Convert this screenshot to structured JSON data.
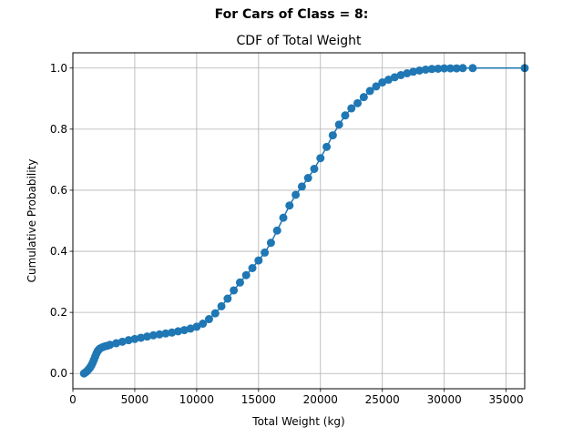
{
  "figure": {
    "suptitle": "For Cars of Class = 8:"
  },
  "chart_data": {
    "type": "line",
    "title": "CDF of Total Weight",
    "xlabel": "Total Weight (kg)",
    "ylabel": "Cumulative Probability",
    "xlim": [
      0,
      36500
    ],
    "ylim": [
      -0.05,
      1.05
    ],
    "xticks": [
      0,
      5000,
      10000,
      15000,
      20000,
      25000,
      30000,
      35000
    ],
    "yticks": [
      0.0,
      0.2,
      0.4,
      0.6,
      0.8,
      1.0
    ],
    "grid": true,
    "marker": "circle",
    "color": "#1f77b4",
    "series": [
      {
        "x": [
          900,
          1000,
          1100,
          1200,
          1300,
          1400,
          1500,
          1600,
          1700,
          1800,
          1900,
          2000,
          2100,
          2200,
          2400,
          2600,
          2800,
          3000,
          3500,
          4000,
          4500,
          5000,
          5500,
          6000,
          6500,
          7000,
          7500,
          8000,
          8500,
          9000,
          9500,
          10000,
          10500,
          11000,
          11500,
          12000,
          12500,
          13000,
          13500,
          14000,
          14500,
          15000,
          15500,
          16000,
          16500,
          17000,
          17500,
          18000,
          18500,
          19000,
          19500,
          20000,
          20500,
          21000,
          21500,
          22000,
          22500,
          23000,
          23500,
          24000,
          24500,
          25000,
          25500,
          26000,
          26500,
          27000,
          27500,
          28000,
          28500,
          29000,
          29500,
          30000,
          30500,
          31000,
          31500,
          32300,
          36500
        ],
        "y": [
          0.0,
          0.003,
          0.006,
          0.01,
          0.015,
          0.02,
          0.027,
          0.035,
          0.045,
          0.055,
          0.065,
          0.073,
          0.078,
          0.082,
          0.086,
          0.089,
          0.091,
          0.094,
          0.099,
          0.104,
          0.109,
          0.113,
          0.117,
          0.121,
          0.125,
          0.128,
          0.131,
          0.134,
          0.138,
          0.142,
          0.147,
          0.153,
          0.163,
          0.178,
          0.197,
          0.22,
          0.245,
          0.272,
          0.298,
          0.322,
          0.345,
          0.37,
          0.396,
          0.428,
          0.468,
          0.51,
          0.55,
          0.585,
          0.612,
          0.64,
          0.67,
          0.705,
          0.742,
          0.78,
          0.815,
          0.845,
          0.868,
          0.885,
          0.905,
          0.925,
          0.94,
          0.953,
          0.962,
          0.97,
          0.977,
          0.983,
          0.988,
          0.992,
          0.995,
          0.997,
          0.998,
          0.999,
          0.999,
          0.999,
          1.0,
          1.0,
          1.0
        ]
      }
    ]
  }
}
